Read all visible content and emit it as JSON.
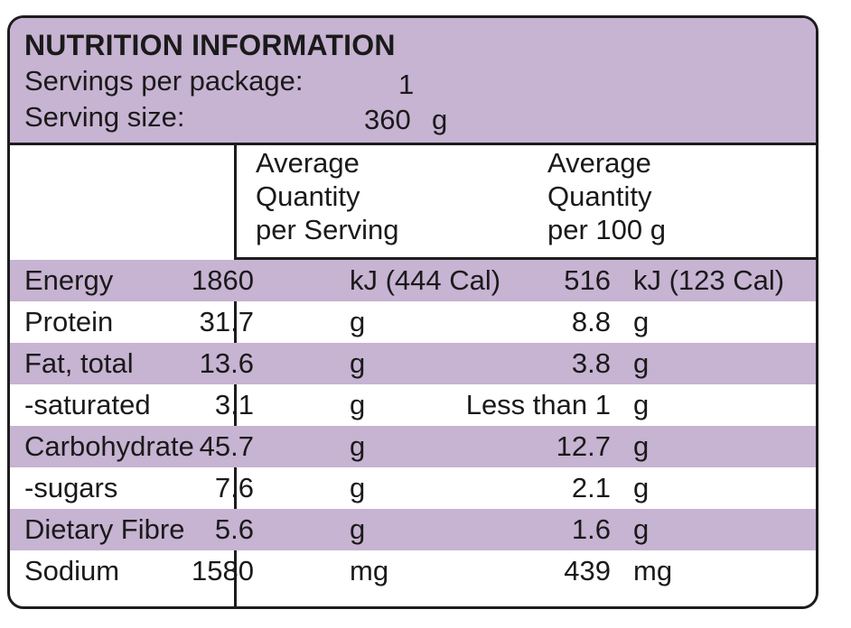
{
  "header": {
    "title": "NUTRITION INFORMATION",
    "servings_label": "Servings per package:",
    "servings_value": "1",
    "serving_size_label": "Serving size:",
    "serving_size_value": "360",
    "serving_size_unit": "g"
  },
  "columns": {
    "per_serving": [
      "Average",
      "Quantity",
      "per Serving"
    ],
    "per_100g": [
      "Average",
      "Quantity",
      "per 100 g"
    ]
  },
  "rows": [
    {
      "name": "Energy",
      "serving_value": "1860",
      "serving_unit": "kJ (444 Cal)",
      "per100_value": "516",
      "per100_unit": "kJ (123 Cal)"
    },
    {
      "name": "Protein",
      "serving_value": "31.7",
      "serving_unit": "g",
      "per100_value": "8.8",
      "per100_unit": "g"
    },
    {
      "name": "Fat, total",
      "serving_value": "13.6",
      "serving_unit": "g",
      "per100_value": "3.8",
      "per100_unit": "g"
    },
    {
      "name": "-saturated",
      "serving_value": "3.1",
      "serving_unit": "g",
      "per100_value": "Less than 1",
      "per100_unit": "g"
    },
    {
      "name": "Carbohydrate",
      "serving_value": "45.7",
      "serving_unit": "g",
      "per100_value": "12.7",
      "per100_unit": "g"
    },
    {
      "name": "-sugars",
      "serving_value": "7.6",
      "serving_unit": "g",
      "per100_value": "2.1",
      "per100_unit": "g"
    },
    {
      "name": "Dietary Fibre",
      "serving_value": "5.6",
      "serving_unit": "g",
      "per100_value": "1.6",
      "per100_unit": "g"
    },
    {
      "name": "Sodium",
      "serving_value": "1580",
      "serving_unit": "mg",
      "per100_value": "439",
      "per100_unit": "mg"
    }
  ],
  "colors": {
    "accent": "#c7b3d2",
    "border": "#1c1c1c"
  }
}
